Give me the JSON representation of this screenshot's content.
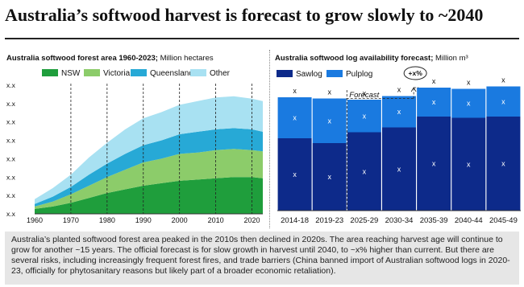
{
  "title": "Australia’s softwood harvest is forecast to grow slowly to ~2040",
  "left_subtitle_bold": "Australia softwood forest area 1960-2023;",
  "left_subtitle_rest": " Million hectares",
  "right_subtitle_bold": "Australia softwood log availability forecast;",
  "right_subtitle_rest": " Million m³",
  "caption": "Australia’s planted softwood forest area peaked in the 2010s then declined in 2020s. The area reaching harvest age will continue to grow for another ~15 years. The official forecast is for slow growth in harvest until 2040, to ~x% higher than current. But there are several risks, including increasingly frequent forest fires, and trade barriers (China banned import of Australian softwood logs in 2020-23, officially for phytosanitary reasons but likely part of a broader economic retaliation).",
  "chart_data": [
    {
      "type": "area",
      "stacked": true,
      "title": "Australia softwood forest area 1960-2023",
      "ylabel": "Million hectares",
      "y_tick_labels": [
        "x.x",
        "x.x",
        "x.x",
        "x.x",
        "x.x",
        "x.x",
        "x.x",
        "x.x"
      ],
      "x_ticks": [
        1960,
        1970,
        1980,
        1990,
        2000,
        2010,
        2020
      ],
      "xlim": [
        1960,
        2023
      ],
      "ylim": [
        0,
        1.05
      ],
      "legend_placement": "top",
      "x": [
        1960,
        1965,
        1970,
        1975,
        1980,
        1985,
        1990,
        1995,
        2000,
        2005,
        2010,
        2015,
        2020,
        2023
      ],
      "series": [
        {
          "name": "NSW",
          "color": "#1f9e3c",
          "values": [
            0.04,
            0.06,
            0.09,
            0.13,
            0.17,
            0.2,
            0.23,
            0.25,
            0.27,
            0.28,
            0.29,
            0.3,
            0.3,
            0.29
          ]
        },
        {
          "name": "Victoria",
          "color": "#8ccc6a",
          "values": [
            0.02,
            0.04,
            0.07,
            0.1,
            0.13,
            0.16,
            0.19,
            0.2,
            0.22,
            0.22,
            0.23,
            0.23,
            0.22,
            0.22
          ]
        },
        {
          "name": "Queensland",
          "color": "#27a9d6",
          "values": [
            0.02,
            0.04,
            0.06,
            0.09,
            0.11,
            0.13,
            0.14,
            0.15,
            0.16,
            0.17,
            0.17,
            0.17,
            0.17,
            0.16
          ]
        },
        {
          "name": "Other",
          "color": "#a8e1f2",
          "values": [
            0.04,
            0.07,
            0.1,
            0.14,
            0.17,
            0.2,
            0.22,
            0.23,
            0.24,
            0.25,
            0.26,
            0.26,
            0.25,
            0.25
          ]
        }
      ],
      "gridlines": "vertical dashed at decades"
    },
    {
      "type": "bar",
      "stacked": true,
      "title": "Australia softwood log availability forecast",
      "ylabel": "Million m³",
      "categories": [
        "2014-18",
        "2019-23",
        "2025-29",
        "2030-34",
        "2035-39",
        "2040-44",
        "2045-49"
      ],
      "ylim": [
        0,
        1
      ],
      "legend_placement": "top-left",
      "series": [
        {
          "name": "Sawlog",
          "color": "#0d2a8a",
          "values": [
            0.6,
            0.56,
            0.65,
            0.69,
            0.78,
            0.77,
            0.78
          ],
          "labels": [
            "x",
            "x",
            "x",
            "x",
            "x",
            "x",
            "x"
          ]
        },
        {
          "name": "Pulplog",
          "color": "#1a7ae0",
          "values": [
            0.34,
            0.37,
            0.27,
            0.26,
            0.24,
            0.24,
            0.25
          ],
          "labels": [
            "x",
            "x",
            "x",
            "x",
            "x",
            "x",
            "x"
          ]
        }
      ],
      "total_labels": [
        "x",
        "x",
        "x",
        "x",
        "x",
        "x",
        "x"
      ],
      "annotations": [
        {
          "text": "Forecast",
          "style": "italic"
        },
        {
          "text": "+x%",
          "style": "circled"
        }
      ]
    }
  ]
}
